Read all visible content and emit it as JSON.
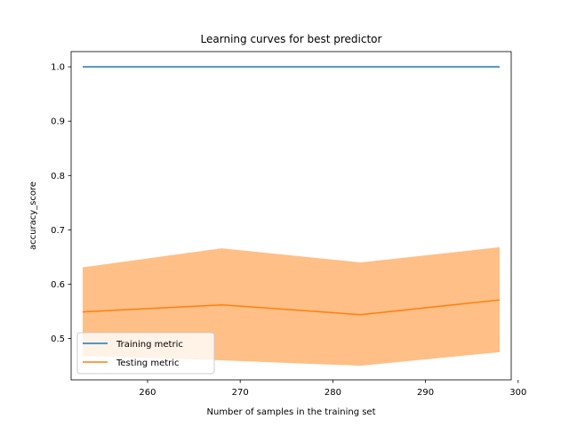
{
  "chart_data": {
    "type": "line",
    "title": "Learning curves for best predictor",
    "xlabel": "Number of samples in the training set",
    "ylabel": "accuracy_score",
    "xlim": [
      251.75,
      299.25
    ],
    "ylim": [
      0.424,
      1.028
    ],
    "xticks": [
      {
        "value": 260,
        "label": "260"
      },
      {
        "value": 270,
        "label": "270"
      },
      {
        "value": 280,
        "label": "280"
      },
      {
        "value": 290,
        "label": "290"
      },
      {
        "value": 300,
        "label": "300"
      }
    ],
    "yticks": [
      {
        "value": 0.5,
        "label": "0.5"
      },
      {
        "value": 0.6,
        "label": "0.6"
      },
      {
        "value": 0.7,
        "label": "0.7"
      },
      {
        "value": 0.8,
        "label": "0.8"
      },
      {
        "value": 0.9,
        "label": "0.9"
      },
      {
        "value": 1.0,
        "label": "1.0"
      }
    ],
    "x": [
      253,
      268,
      283,
      298
    ],
    "series": [
      {
        "name": "Training metric",
        "color": "#1f77b4",
        "values": [
          1.0,
          1.0,
          1.0,
          1.0
        ]
      },
      {
        "name": "Testing metric",
        "color": "#ff7f0e",
        "values": [
          0.549,
          0.562,
          0.544,
          0.571
        ],
        "band_lower": [
          0.468,
          0.46,
          0.45,
          0.475
        ],
        "band_upper": [
          0.631,
          0.666,
          0.64,
          0.668
        ],
        "band_color": "#ffbf86"
      }
    ],
    "legend": {
      "position": "lower-left"
    },
    "grid": false
  }
}
